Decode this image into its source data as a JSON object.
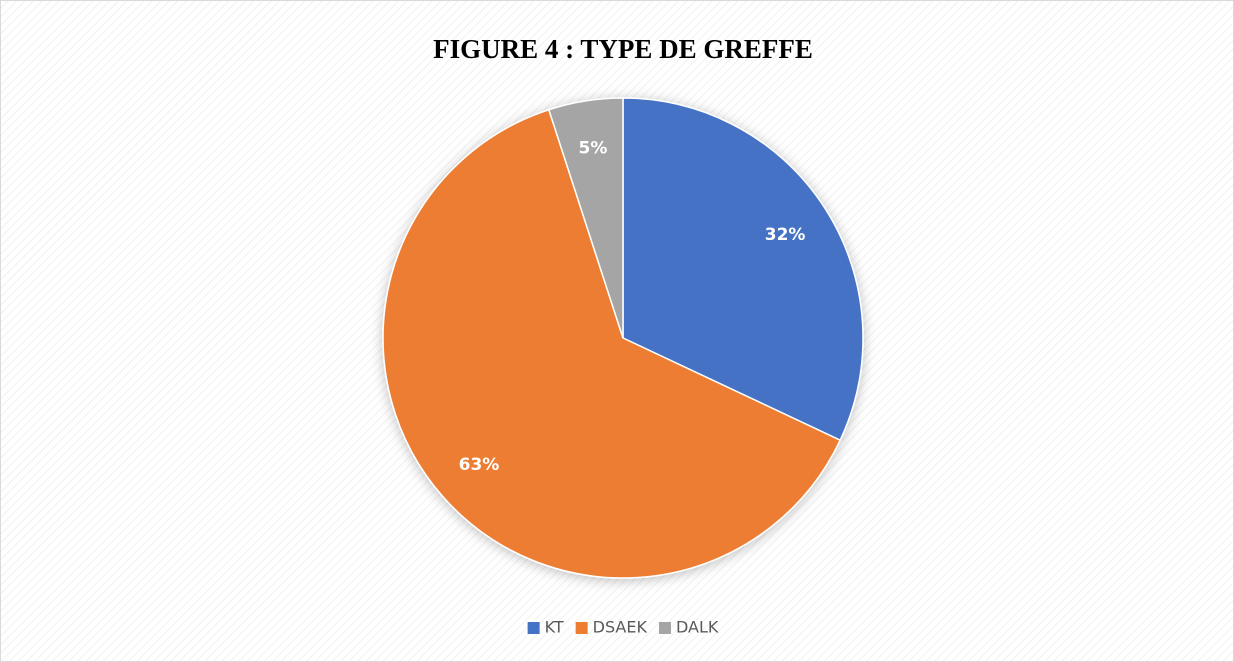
{
  "chart_data": {
    "type": "pie",
    "title": "FIGURE 4 : TYPE DE GREFFE",
    "categories": [
      "KT",
      "DSAEK",
      "DALK"
    ],
    "values": [
      32,
      63,
      5
    ],
    "value_labels": [
      "32%",
      "63%",
      "5%"
    ],
    "colors": [
      "#4472c4",
      "#ed7d31",
      "#a5a5a5"
    ],
    "legend": "bottom"
  }
}
